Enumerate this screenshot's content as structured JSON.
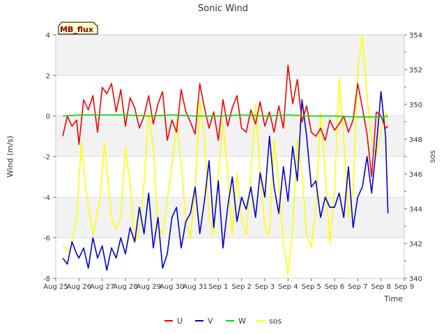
{
  "chart_data": {
    "type": "line",
    "title": "Sonic Wind",
    "xlabel": "Time",
    "ylabel": "Wind (m/s)",
    "y2label": "sos",
    "site_badge": "MB_flux",
    "x_ticks": [
      "Aug 25",
      "Aug 26",
      "Aug 27",
      "Aug 28",
      "Aug 29",
      "Aug 30",
      "Aug 31",
      "Sep 1",
      "Sep 2",
      "Sep 3",
      "Sep 4",
      "Sep 5",
      "Sep 6",
      "Sep 7",
      "Sep 8",
      "Sep 9"
    ],
    "x_range_days": [
      0,
      15
    ],
    "ylim": [
      -8,
      4
    ],
    "y_ticks": [
      -8,
      -6,
      -4,
      -2,
      0,
      2,
      4
    ],
    "y2lim": [
      340,
      354
    ],
    "y2_ticks": [
      340,
      342,
      344,
      346,
      348,
      350,
      352,
      354
    ],
    "grid": true,
    "legend_position": "bottom-center",
    "series": [
      {
        "name": "U",
        "axis": "left",
        "color": "#ee0000",
        "x": [
          0.3,
          0.5,
          0.7,
          0.9,
          1.0,
          1.2,
          1.4,
          1.6,
          1.8,
          2.0,
          2.2,
          2.4,
          2.6,
          2.8,
          3.0,
          3.2,
          3.4,
          3.6,
          3.8,
          4.0,
          4.2,
          4.4,
          4.6,
          4.8,
          5.0,
          5.2,
          5.4,
          5.6,
          5.8,
          6.0,
          6.2,
          6.4,
          6.6,
          6.8,
          7.0,
          7.2,
          7.4,
          7.6,
          7.8,
          8.0,
          8.2,
          8.4,
          8.6,
          8.8,
          9.0,
          9.2,
          9.4,
          9.6,
          9.8,
          10.0,
          10.2,
          10.4,
          10.6,
          10.8,
          11.0,
          11.2,
          11.4,
          11.6,
          11.8,
          12.0,
          12.2,
          12.4,
          12.6,
          12.8,
          13.0,
          13.2,
          13.4,
          13.6,
          13.8,
          14.0,
          14.2,
          14.3
        ],
        "y": [
          -1.0,
          0.0,
          -0.5,
          -0.2,
          -1.4,
          0.8,
          0.3,
          1.0,
          -0.8,
          1.4,
          1.1,
          1.6,
          0.2,
          1.3,
          -0.5,
          0.9,
          0.4,
          -0.6,
          0.0,
          1.0,
          -0.4,
          0.6,
          1.2,
          -1.2,
          -0.2,
          -0.8,
          1.3,
          0.2,
          -0.3,
          -0.9,
          1.6,
          0.4,
          -0.6,
          0.2,
          -1.2,
          0.8,
          -0.5,
          0.4,
          1.0,
          -0.6,
          -0.8,
          0.3,
          -0.4,
          0.7,
          -0.5,
          0.2,
          -0.8,
          0.5,
          -0.6,
          2.5,
          0.6,
          1.8,
          -0.3,
          0.5,
          -0.8,
          -1.0,
          -0.6,
          -1.2,
          -0.2,
          -0.7,
          -0.4,
          0.0,
          -0.8,
          -0.2,
          1.6,
          0.4,
          -0.9,
          -3.0,
          0.2,
          0.0,
          -0.6,
          -0.5
        ]
      },
      {
        "name": "V",
        "axis": "left",
        "color": "#0000cc",
        "x": [
          0.3,
          0.5,
          0.7,
          0.9,
          1.0,
          1.2,
          1.4,
          1.6,
          1.8,
          2.0,
          2.2,
          2.4,
          2.6,
          2.8,
          3.0,
          3.2,
          3.4,
          3.6,
          3.8,
          4.0,
          4.2,
          4.4,
          4.6,
          4.8,
          5.0,
          5.2,
          5.4,
          5.6,
          5.8,
          6.0,
          6.2,
          6.4,
          6.6,
          6.8,
          7.0,
          7.2,
          7.4,
          7.6,
          7.8,
          8.0,
          8.2,
          8.4,
          8.6,
          8.8,
          9.0,
          9.2,
          9.4,
          9.6,
          9.8,
          10.0,
          10.2,
          10.4,
          10.6,
          10.8,
          11.0,
          11.2,
          11.4,
          11.6,
          11.8,
          12.0,
          12.2,
          12.4,
          12.6,
          12.8,
          13.0,
          13.2,
          13.4,
          13.6,
          13.8,
          14.0,
          14.2,
          14.3
        ],
        "y": [
          -7.0,
          -7.3,
          -6.2,
          -6.8,
          -7.0,
          -6.5,
          -7.5,
          -6.0,
          -7.0,
          -6.4,
          -7.6,
          -6.5,
          -7.0,
          -6.0,
          -6.8,
          -5.5,
          -6.2,
          -4.5,
          -5.8,
          -3.8,
          -6.5,
          -5.0,
          -7.5,
          -6.8,
          -5.0,
          -4.5,
          -6.5,
          -5.2,
          -4.8,
          -3.5,
          -5.8,
          -4.2,
          -2.2,
          -5.5,
          -3.2,
          -6.5,
          -4.5,
          -3.0,
          -5.2,
          -4.0,
          -4.6,
          -3.5,
          -5.0,
          -2.8,
          -4.0,
          -1.0,
          -3.5,
          -4.8,
          -2.5,
          -4.2,
          -1.5,
          -3.2,
          0.8,
          -1.0,
          -3.5,
          -3.2,
          -5.0,
          -4.0,
          -4.5,
          -4.5,
          -3.8,
          -5.0,
          -2.5,
          -5.5,
          -4.0,
          -3.5,
          -2.0,
          -3.8,
          -1.5,
          1.2,
          -1.0,
          -4.8
        ]
      },
      {
        "name": "W",
        "axis": "left",
        "color": "#00dd00",
        "x": [
          0.3,
          1.0,
          2.0,
          3.0,
          4.0,
          5.0,
          6.0,
          7.0,
          8.0,
          9.0,
          10.0,
          11.0,
          12.0,
          13.0,
          14.0,
          14.3
        ],
        "y": [
          0.0,
          0.05,
          0.05,
          0.05,
          0.0,
          0.05,
          0.0,
          0.0,
          0.05,
          0.0,
          0.05,
          0.0,
          0.0,
          -0.05,
          -0.05,
          0.0
        ]
      },
      {
        "name": "sos",
        "axis": "right",
        "color": "#ffff00",
        "x": [
          0.3,
          0.6,
          0.9,
          1.1,
          1.3,
          1.6,
          1.9,
          2.1,
          2.4,
          2.6,
          2.8,
          3.0,
          3.2,
          3.4,
          3.6,
          3.8,
          4.0,
          4.2,
          4.4,
          4.6,
          4.8,
          5.0,
          5.2,
          5.4,
          5.6,
          5.8,
          6.0,
          6.2,
          6.4,
          6.6,
          6.8,
          7.0,
          7.2,
          7.4,
          7.6,
          7.8,
          8.0,
          8.2,
          8.4,
          8.6,
          8.8,
          9.0,
          9.2,
          9.4,
          9.6,
          9.8,
          10.0,
          10.2,
          10.4,
          10.6,
          10.8,
          11.0,
          11.2,
          11.4,
          11.6,
          11.8,
          12.0,
          12.2,
          12.4,
          12.6,
          12.8,
          13.0,
          13.2,
          13.4,
          13.6,
          13.8,
          14.0,
          14.1,
          14.2,
          14.3
        ],
        "y": [
          341.9,
          341.5,
          343.5,
          347.8,
          345.0,
          342.5,
          344.5,
          347.8,
          343.5,
          342.8,
          343.5,
          347.5,
          345.5,
          342.0,
          342.8,
          345.5,
          349.5,
          347.5,
          343.0,
          342.5,
          344.5,
          346.5,
          349.0,
          346.5,
          343.5,
          342.3,
          345.0,
          350.2,
          348.0,
          343.5,
          342.5,
          346.0,
          349.0,
          346.0,
          342.5,
          346.0,
          343.5,
          342.5,
          346.0,
          350.0,
          346.0,
          343.0,
          342.5,
          348.0,
          345.5,
          342.0,
          340.2,
          342.8,
          348.0,
          346.0,
          342.5,
          341.8,
          344.0,
          349.5,
          346.0,
          342.0,
          345.0,
          351.5,
          348.0,
          343.5,
          345.0,
          352.0,
          354.0,
          350.5,
          348.0,
          347.0,
          348.5,
          349.0,
          349.5,
          349.0
        ]
      }
    ]
  }
}
